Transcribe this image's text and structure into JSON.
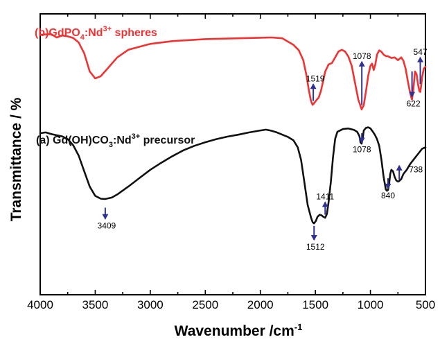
{
  "chart_data": {
    "type": "line",
    "xlabel": "Wavenumber /cm",
    "xlabel_sup": "-1",
    "ylabel": "Transmittance / %",
    "xlim": [
      4000,
      500
    ],
    "x_reversed": true,
    "x_ticks": [
      4000,
      3500,
      3000,
      2500,
      2000,
      1500,
      1000,
      500
    ],
    "x_tick_labels": [
      "4000",
      "3500",
      "3000",
      "2500",
      "2000",
      "1500",
      "1000",
      "500"
    ],
    "y_ticks_shown": false,
    "ylim": [
      0,
      100
    ],
    "grid": false,
    "series": [
      {
        "name": "(b)GdPO4:Nd3+ spheres",
        "color": "#ee3333",
        "label_parts": [
          {
            "text": "(b)GdPO",
            "shift": "none"
          },
          {
            "text": "4",
            "shift": "sub"
          },
          {
            "text": ":Nd",
            "shift": "none"
          },
          {
            "text": "3+",
            "shift": "super"
          },
          {
            "text": " spheres",
            "shift": "none"
          }
        ],
        "points": [
          [
            3990,
            92.6
          ],
          [
            3900,
            92.8
          ],
          [
            3850,
            91.6
          ],
          [
            3800,
            92.3
          ],
          [
            3750,
            92.0
          ],
          [
            3700,
            91.4
          ],
          [
            3650,
            89.8
          ],
          [
            3600,
            86.0
          ],
          [
            3550,
            79.5
          ],
          [
            3500,
            77.0
          ],
          [
            3450,
            77.8
          ],
          [
            3400,
            80.0
          ],
          [
            3300,
            84.5
          ],
          [
            3200,
            87.2
          ],
          [
            3000,
            89.3
          ],
          [
            2800,
            90.3
          ],
          [
            2500,
            91.0
          ],
          [
            2200,
            91.3
          ],
          [
            2000,
            91.5
          ],
          [
            1900,
            91.6
          ],
          [
            1800,
            91.3
          ],
          [
            1700,
            89.0
          ],
          [
            1650,
            87.0
          ],
          [
            1610,
            83.5
          ],
          [
            1580,
            78.0
          ],
          [
            1560,
            73.0
          ],
          [
            1540,
            69.0
          ],
          [
            1525,
            67.6
          ],
          [
            1510,
            68.3
          ],
          [
            1490,
            69.3
          ],
          [
            1470,
            70.2
          ],
          [
            1450,
            72.5
          ],
          [
            1430,
            76.0
          ],
          [
            1410,
            79.5
          ],
          [
            1380,
            82.0
          ],
          [
            1350,
            82.5
          ],
          [
            1320,
            84.5
          ],
          [
            1290,
            86.6
          ],
          [
            1260,
            87.2
          ],
          [
            1230,
            86.6
          ],
          [
            1200,
            84.8
          ],
          [
            1170,
            81.5
          ],
          [
            1140,
            75.5
          ],
          [
            1110,
            69.5
          ],
          [
            1080,
            66.0
          ],
          [
            1060,
            67.5
          ],
          [
            1040,
            72.5
          ],
          [
            1020,
            78.0
          ],
          [
            1000,
            81.5
          ],
          [
            985,
            82.3
          ],
          [
            970,
            80.0
          ],
          [
            955,
            82.0
          ],
          [
            940,
            85.5
          ],
          [
            920,
            87.0
          ],
          [
            900,
            86.5
          ],
          [
            880,
            85.5
          ],
          [
            860,
            85.0
          ],
          [
            840,
            84.9
          ],
          [
            810,
            84.3
          ],
          [
            780,
            84.5
          ],
          [
            750,
            83.5
          ],
          [
            720,
            84.5
          ],
          [
            700,
            83.3
          ],
          [
            680,
            80.5
          ],
          [
            660,
            76.0
          ],
          [
            645,
            73.0
          ],
          [
            630,
            70.5
          ],
          [
            622,
            69.5
          ],
          [
            610,
            73.0
          ],
          [
            595,
            79.5
          ],
          [
            580,
            78.5
          ],
          [
            568,
            75.0
          ],
          [
            555,
            72.5
          ],
          [
            547,
            72.2
          ],
          [
            540,
            74.0
          ],
          [
            530,
            77.5
          ],
          [
            515,
            80.5
          ],
          [
            500,
            81.2
          ]
        ]
      },
      {
        "name": "(a) Gd(OH)CO3:Nd3+ precursor",
        "color": "#111111",
        "label_parts": [
          {
            "text": "(a) Gd(OH)CO",
            "shift": "none"
          },
          {
            "text": "3",
            "shift": "sub"
          },
          {
            "text": ":Nd",
            "shift": "none"
          },
          {
            "text": "3+",
            "shift": "super"
          },
          {
            "text": " precursor",
            "shift": "none"
          }
        ],
        "points": [
          [
            4000,
            57.5
          ],
          [
            3950,
            57.8
          ],
          [
            3900,
            57.2
          ],
          [
            3850,
            56.8
          ],
          [
            3800,
            56.4
          ],
          [
            3750,
            55.4
          ],
          [
            3700,
            53.2
          ],
          [
            3650,
            49.5
          ],
          [
            3600,
            44.0
          ],
          [
            3550,
            38.5
          ],
          [
            3500,
            35.2
          ],
          [
            3450,
            34.2
          ],
          [
            3409,
            34.1
          ],
          [
            3350,
            34.6
          ],
          [
            3300,
            35.7
          ],
          [
            3200,
            38.5
          ],
          [
            3100,
            41.5
          ],
          [
            3000,
            44.5
          ],
          [
            2900,
            47.0
          ],
          [
            2800,
            49.3
          ],
          [
            2700,
            51.4
          ],
          [
            2600,
            53.0
          ],
          [
            2500,
            54.3
          ],
          [
            2400,
            55.4
          ],
          [
            2300,
            56.3
          ],
          [
            2200,
            57.0
          ],
          [
            2100,
            57.8
          ],
          [
            2000,
            58.5
          ],
          [
            1950,
            58.8
          ],
          [
            1900,
            58.4
          ],
          [
            1850,
            57.8
          ],
          [
            1800,
            57.0
          ],
          [
            1750,
            56.2
          ],
          [
            1700,
            55.0
          ],
          [
            1660,
            52.5
          ],
          [
            1630,
            48.0
          ],
          [
            1600,
            40.0
          ],
          [
            1570,
            32.0
          ],
          [
            1540,
            27.5
          ],
          [
            1525,
            25.8
          ],
          [
            1512,
            25.4
          ],
          [
            1495,
            26.3
          ],
          [
            1480,
            27.8
          ],
          [
            1460,
            28.5
          ],
          [
            1445,
            28.3
          ],
          [
            1430,
            27.8
          ],
          [
            1411,
            27.4
          ],
          [
            1395,
            28.8
          ],
          [
            1380,
            33.0
          ],
          [
            1360,
            40.0
          ],
          [
            1340,
            49.0
          ],
          [
            1320,
            55.5
          ],
          [
            1300,
            58.0
          ],
          [
            1250,
            59.0
          ],
          [
            1200,
            59.2
          ],
          [
            1150,
            58.7
          ],
          [
            1120,
            58.0
          ],
          [
            1100,
            56.5
          ],
          [
            1090,
            54.2
          ],
          [
            1080,
            53.8
          ],
          [
            1070,
            55.8
          ],
          [
            1060,
            58.5
          ],
          [
            1040,
            59.4
          ],
          [
            1020,
            59.6
          ],
          [
            1000,
            59.2
          ],
          [
            980,
            58.2
          ],
          [
            960,
            57.0
          ],
          [
            940,
            55.4
          ],
          [
            920,
            53.0
          ],
          [
            900,
            48.0
          ],
          [
            880,
            42.0
          ],
          [
            860,
            37.5
          ],
          [
            850,
            37.0
          ],
          [
            840,
            37.3
          ],
          [
            830,
            39.5
          ],
          [
            820,
            43.0
          ],
          [
            810,
            44.5
          ],
          [
            795,
            44.0
          ],
          [
            780,
            42.0
          ],
          [
            765,
            40.7
          ],
          [
            750,
            40.3
          ],
          [
            738,
            40.5
          ],
          [
            720,
            41.2
          ],
          [
            700,
            43.0
          ],
          [
            670,
            44.5
          ],
          [
            640,
            46.5
          ],
          [
            600,
            48.5
          ],
          [
            560,
            50.5
          ],
          [
            530,
            52.0
          ],
          [
            500,
            52.5
          ]
        ]
      }
    ],
    "annotations": [
      {
        "label": "1519",
        "x": 1519,
        "direction": "up",
        "from_y": 69.0,
        "to_y": 75.0
      },
      {
        "label": "1078",
        "x": 1078,
        "direction": "up",
        "from_y": 67.5,
        "to_y": 83.0
      },
      {
        "label": "622",
        "x": 622,
        "direction": "down",
        "from_y": 79.5,
        "to_y": 70.5
      },
      {
        "label": "547",
        "x": 547,
        "direction": "up",
        "from_y": 75.0,
        "to_y": 84.5
      },
      {
        "label": "3409",
        "x": 3409,
        "direction": "down",
        "from_y": 31.0,
        "to_y": 27.0
      },
      {
        "label": "1512",
        "x": 1512,
        "direction": "down",
        "from_y": 24.5,
        "to_y": 19.5
      },
      {
        "label": "1411",
        "x": 1411,
        "direction": "up",
        "from_y": 28.5,
        "to_y": 33.0
      },
      {
        "label": "1078",
        "x": 1078,
        "direction": "down",
        "from_y": 57.5,
        "to_y": 54.2
      },
      {
        "label": "840",
        "x": 840,
        "direction": "down",
        "from_y": 41.5,
        "to_y": 37.8
      },
      {
        "label": "738",
        "x": 738,
        "direction": "up",
        "from_y": 41.0,
        "to_y": 46.0
      }
    ]
  }
}
